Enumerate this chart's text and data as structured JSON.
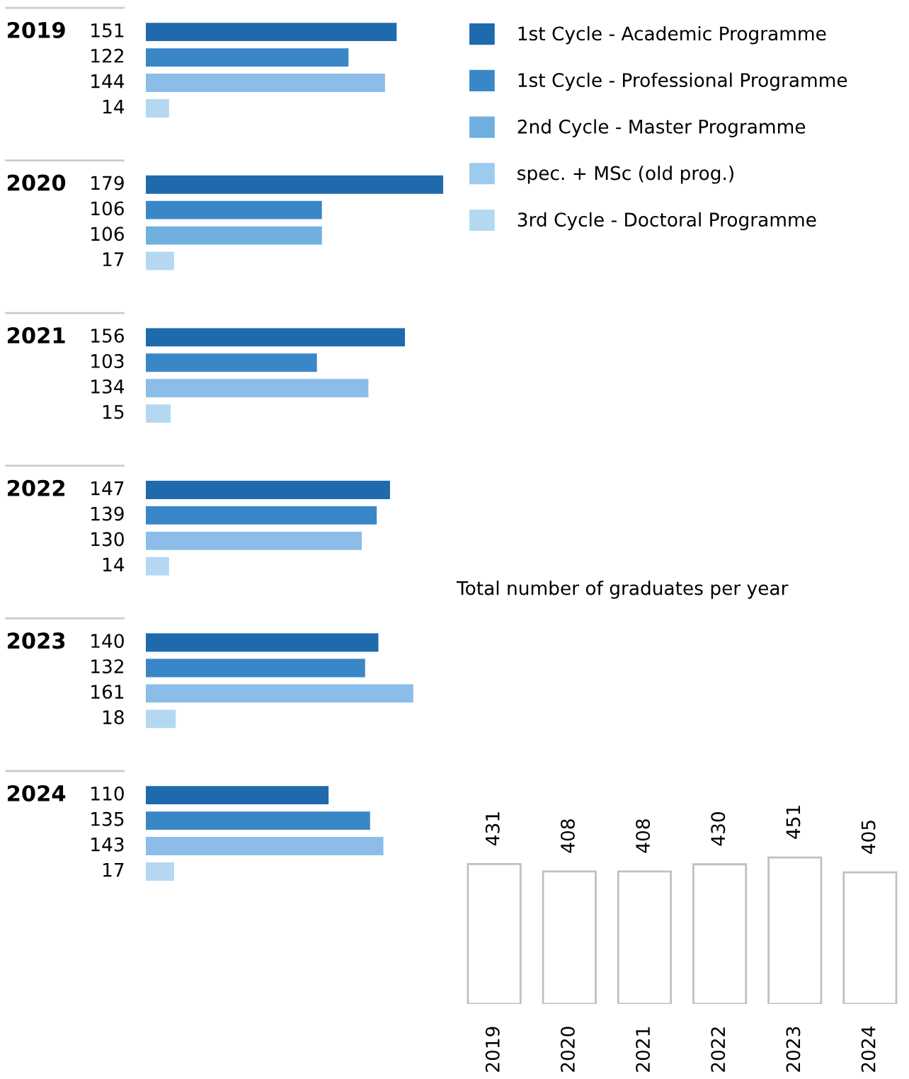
{
  "chart_data": [
    {
      "type": "bar",
      "orientation": "horizontal",
      "categories": [
        "2019",
        "2020",
        "2021",
        "2022",
        "2023",
        "2024"
      ],
      "data_labels": true,
      "legend": "right",
      "series": [
        {
          "name": "1st Cycle - Academic Programme",
          "color": "#1f6aad",
          "values": [
            151,
            179,
            156,
            147,
            140,
            110
          ]
        },
        {
          "name": "1st Cycle - Professional Programme",
          "color": "#3a87c8",
          "values": [
            122,
            106,
            103,
            139,
            132,
            135
          ]
        },
        {
          "name": "2nd Cycle - Master Programme",
          "color": "#6fb0e0",
          "values": [
            144,
            106,
            134,
            130,
            161,
            143
          ],
          "colors": [
            "#8bbde8",
            "#6fb0e0",
            "#8bbde8",
            "#8bbde8",
            "#8bbde8",
            "#8bbde8"
          ]
        },
        {
          "name": "spec. + MSc (old prog.)",
          "color": "#9ccbee",
          "values": [
            null,
            null,
            null,
            null,
            null,
            null
          ]
        },
        {
          "name": "3rd Cycle - Doctoral Programme",
          "color": "#b5d8f2",
          "values": [
            14,
            17,
            15,
            14,
            18,
            17
          ]
        }
      ]
    },
    {
      "type": "bar",
      "title": "Total number of graduates per year",
      "categories": [
        "2019",
        "2020",
        "2021",
        "2022",
        "2023",
        "2024"
      ],
      "values": [
        431,
        408,
        408,
        430,
        451,
        405
      ],
      "color": "#c0c0c0",
      "data_labels": true
    }
  ]
}
